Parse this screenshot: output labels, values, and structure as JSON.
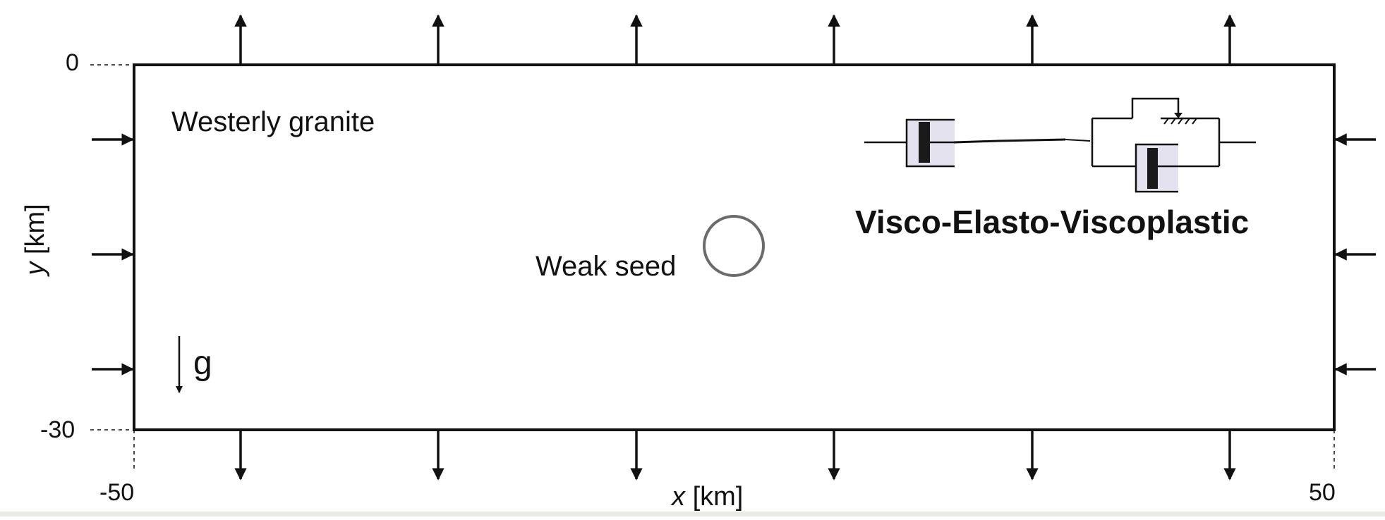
{
  "axes": {
    "x_label_var": "x",
    "x_label_unit": "[km]",
    "y_label_var": "y",
    "y_label_unit": "[km]",
    "x_ticks": [
      "-50",
      "50"
    ],
    "y_ticks": [
      "0",
      "-30"
    ]
  },
  "domain_box": {
    "material_label": "Westerly granite",
    "seed_label": "Weak seed",
    "gravity_label": "g"
  },
  "rheology": {
    "model_label": "Visco-Elasto-Viscoplastic"
  },
  "boundary_conditions": {
    "top": "extension (arrows pointing outward)",
    "bottom": "extension (arrows pointing outward)",
    "left": "compression (arrows pointing inward)",
    "right": "compression (arrows pointing inward)"
  },
  "colors": {
    "line": "#111111",
    "seed_stroke": "#6b6b6b",
    "dashpot_fill": "#e4e2ee",
    "footer_strip": "#e9ece4"
  }
}
